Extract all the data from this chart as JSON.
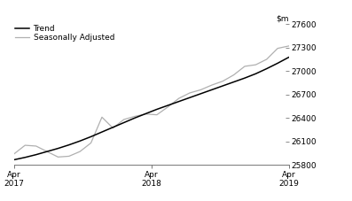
{
  "ylim": [
    25800,
    27600
  ],
  "yticks": [
    25800,
    26100,
    26400,
    26700,
    27000,
    27300,
    27600
  ],
  "xtick_positions": [
    0,
    12,
    24
  ],
  "xtick_labels": [
    "Apr\n2017",
    "Apr\n2018",
    "Apr\n2019"
  ],
  "trend_color": "#000000",
  "seasonal_color": "#b0b0b0",
  "legend_labels": [
    "Trend",
    "Seasonally Adjusted"
  ],
  "background_color": "#ffffff",
  "trend_data": [
    25865,
    25895,
    25930,
    25970,
    26010,
    26055,
    26105,
    26160,
    26220,
    26280,
    26340,
    26400,
    26455,
    26510,
    26560,
    26610,
    26660,
    26710,
    26760,
    26810,
    26860,
    26910,
    26965,
    27030,
    27100,
    27175
  ],
  "seasonal_data": [
    25940,
    26050,
    26040,
    25970,
    25900,
    25910,
    25970,
    26080,
    26410,
    26270,
    26380,
    26420,
    26450,
    26440,
    26540,
    26650,
    26720,
    26760,
    26820,
    26870,
    26950,
    27060,
    27080,
    27150,
    27290,
    27320
  ]
}
